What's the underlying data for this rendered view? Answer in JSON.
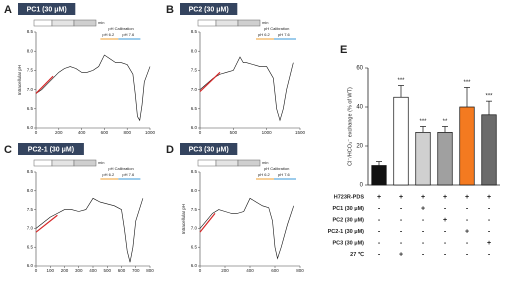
{
  "chart_data": [
    {
      "type": "line",
      "panel": "A",
      "title": "PC1 (30 μM)",
      "ylabel": "Intracellular pH",
      "annotations": [
        "pH Calibration",
        "pH 6.2",
        "pH 7.6",
        "min"
      ],
      "xlim": [
        0,
        1000
      ],
      "xticks": [
        0,
        200,
        400,
        600,
        800,
        1000
      ],
      "ylim": [
        6.0,
        8.5
      ],
      "yticks": [
        {
          "value": 6.0,
          "label": "6.0"
        },
        {
          "value": 6.5,
          "label": "6.5"
        },
        {
          "value": 7.0,
          "label": "7.0"
        },
        {
          "value": 7.5,
          "label": "7.5"
        },
        {
          "value": 8.0,
          "label": "8.0"
        },
        {
          "value": 8.5,
          "label": "8.5"
        }
      ],
      "series": [
        {
          "color": "#111111",
          "x": [
            0,
            50,
            100,
            150,
            200,
            250,
            300,
            350,
            400,
            450,
            500,
            550,
            600,
            650,
            700,
            750,
            800,
            850,
            870,
            890,
            910,
            930,
            950,
            1000
          ],
          "values": [
            6.9,
            7.0,
            7.15,
            7.3,
            7.45,
            7.55,
            7.6,
            7.55,
            7.45,
            7.45,
            7.5,
            7.6,
            7.9,
            7.8,
            7.7,
            7.7,
            7.65,
            7.4,
            6.9,
            6.3,
            6.2,
            6.6,
            7.2,
            7.6
          ]
        },
        {
          "color": "#d62728",
          "x": [
            0,
            150
          ],
          "values": [
            6.9,
            7.35
          ]
        }
      ]
    },
    {
      "type": "line",
      "panel": "B",
      "title": "PC2 (30 μM)",
      "annotations": [
        "pH Calibration",
        "pH 6.2",
        "pH 7.6",
        "min"
      ],
      "xlim": [
        0,
        1500
      ],
      "xticks": [
        0,
        500,
        1000,
        1500
      ],
      "ylim": [
        6.0,
        8.5
      ],
      "yticks": [
        {
          "value": 6.0,
          "label": "6.0"
        },
        {
          "value": 6.5,
          "label": "6.5"
        },
        {
          "value": 7.0,
          "label": "7.0"
        },
        {
          "value": 7.5,
          "label": "7.5"
        },
        {
          "value": 8.0,
          "label": "8.0"
        },
        {
          "value": 8.5,
          "label": "8.5"
        }
      ],
      "series": [
        {
          "color": "#111111",
          "x": [
            0,
            100,
            200,
            300,
            400,
            500,
            600,
            650,
            700,
            800,
            900,
            1000,
            1100,
            1150,
            1200,
            1250,
            1300,
            1400
          ],
          "values": [
            7.0,
            7.15,
            7.3,
            7.4,
            7.45,
            7.5,
            7.85,
            7.7,
            7.7,
            7.65,
            7.6,
            7.6,
            7.3,
            6.5,
            6.2,
            6.5,
            7.0,
            7.7
          ]
        },
        {
          "color": "#d62728",
          "x": [
            0,
            300
          ],
          "values": [
            6.95,
            7.45
          ]
        }
      ]
    },
    {
      "type": "line",
      "panel": "C",
      "title": "PC2-1 (30 μM)",
      "annotations": [
        "pH Calibration",
        "pH 6.2",
        "pH 7.6",
        "min"
      ],
      "xlim": [
        0,
        800
      ],
      "xticks": [
        0,
        100,
        200,
        300,
        400,
        500,
        600,
        700,
        800
      ],
      "ylim": [
        6.0,
        8.5
      ],
      "yticks": [
        {
          "value": 6.0,
          "label": "6.0"
        },
        {
          "value": 6.5,
          "label": "6.5"
        },
        {
          "value": 7.0,
          "label": "7.0"
        },
        {
          "value": 7.5,
          "label": "7.5"
        },
        {
          "value": 8.0,
          "label": "8.0"
        },
        {
          "value": 8.5,
          "label": "8.5"
        }
      ],
      "series": [
        {
          "color": "#111111",
          "x": [
            0,
            50,
            100,
            150,
            200,
            250,
            300,
            350,
            400,
            450,
            500,
            550,
            600,
            620,
            640,
            660,
            680,
            700,
            750
          ],
          "values": [
            7.0,
            7.15,
            7.3,
            7.4,
            7.5,
            7.5,
            7.45,
            7.5,
            7.8,
            7.7,
            7.65,
            7.6,
            7.5,
            7.0,
            6.4,
            6.1,
            6.5,
            7.2,
            7.8
          ]
        },
        {
          "color": "#d62728",
          "x": [
            0,
            150
          ],
          "values": [
            6.9,
            7.35
          ]
        }
      ]
    },
    {
      "type": "line",
      "panel": "D",
      "title": "PC3 (30 μM)",
      "ylabel": "Intracellular pH",
      "annotations": [
        "pH Calibration",
        "pH 6.2",
        "pH 7.6",
        "min"
      ],
      "xlim": [
        0,
        800
      ],
      "xticks": [
        0,
        200,
        400,
        600,
        800
      ],
      "ylim": [
        6.0,
        8.5
      ],
      "yticks": [
        {
          "value": 6.0,
          "label": "6.0"
        },
        {
          "value": 6.5,
          "label": "6.5"
        },
        {
          "value": 7.0,
          "label": "7.0"
        },
        {
          "value": 7.5,
          "label": "7.5"
        },
        {
          "value": 8.0,
          "label": "8.0"
        },
        {
          "value": 8.5,
          "label": "8.5"
        }
      ],
      "series": [
        {
          "color": "#111111",
          "x": [
            0,
            50,
            100,
            150,
            200,
            250,
            300,
            350,
            400,
            450,
            500,
            550,
            580,
            600,
            620,
            650,
            700,
            750
          ],
          "values": [
            7.0,
            7.2,
            7.4,
            7.5,
            7.45,
            7.4,
            7.4,
            7.45,
            7.8,
            7.7,
            7.6,
            7.55,
            7.2,
            6.5,
            6.2,
            6.5,
            7.1,
            7.6
          ]
        },
        {
          "color": "#d62728",
          "x": [
            0,
            120
          ],
          "values": [
            6.9,
            7.4
          ]
        }
      ]
    },
    {
      "type": "bar",
      "panel": "E",
      "ylabel": "Cl⁻/HCO₃⁻ exchange (% of WT)",
      "ylim": [
        0,
        60
      ],
      "yticks": [
        0,
        20,
        40,
        60
      ],
      "values": [
        10,
        45,
        27,
        27,
        40,
        36
      ],
      "errors": [
        2,
        6,
        3,
        3,
        10,
        7
      ],
      "colors": [
        "#111111",
        "#ffffff",
        "#d0d0d0",
        "#a0a0a0",
        "#f47a20",
        "#6b6b6b"
      ],
      "value_labels": [
        null,
        "***",
        "***",
        "**",
        "***",
        "***"
      ],
      "table": [
        {
          "label": "H723R-PDS",
          "cells": [
            "+",
            "+",
            "+",
            "+",
            "+",
            "+"
          ]
        },
        {
          "label": "PC1 (30 μM)",
          "cells": [
            "-",
            "-",
            "+",
            "-",
            "-",
            "-"
          ]
        },
        {
          "label": "PC2 (30 μM)",
          "cells": [
            "-",
            "-",
            "-",
            "+",
            "-",
            "-"
          ]
        },
        {
          "label": "PC2-1 (30 μM)",
          "cells": [
            "-",
            "-",
            "-",
            "-",
            "+",
            "-"
          ]
        },
        {
          "label": "PC3 (30 μM)",
          "cells": [
            "-",
            "-",
            "-",
            "-",
            "-",
            "+"
          ]
        },
        {
          "label": "27 ℃",
          "cells": [
            "-",
            "+",
            "-",
            "-",
            "-",
            "-"
          ]
        }
      ]
    }
  ]
}
